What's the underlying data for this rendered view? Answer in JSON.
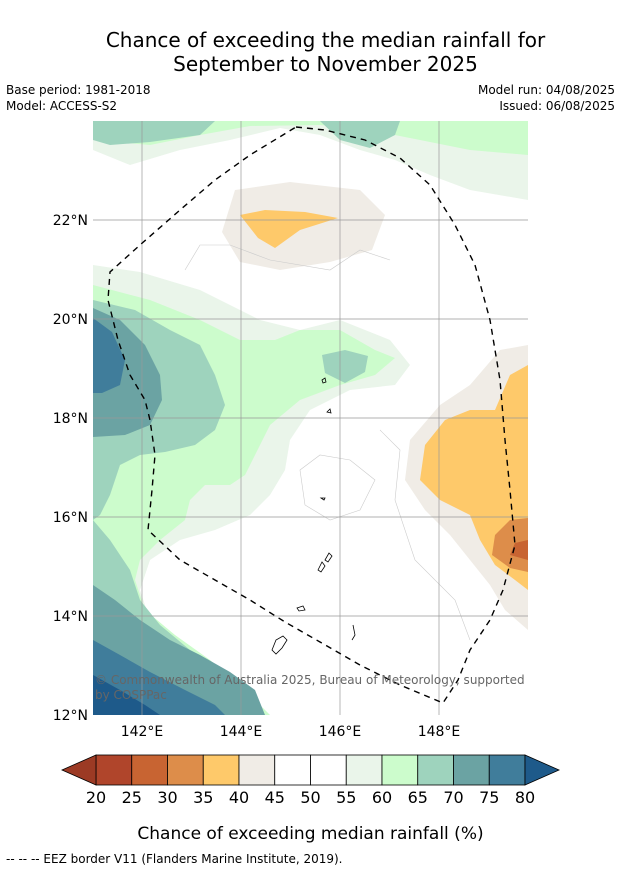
{
  "title_line1": "Chance of exceeding the median rainfall for",
  "title_line2": "September to November 2025",
  "base_period": "Base period: 1981-2018",
  "model": "Model: ACCESS-S2",
  "model_run": "Model run: 04/08/2025",
  "issued": "Issued: 06/08/2025",
  "copyright": "© Commonwealth of Australia 2025, Bureau of Meteorology, supported",
  "copyright2": "by COSPPac",
  "lat_ticks": [
    "22°N",
    "20°N",
    "18°N",
    "16°N",
    "14°N",
    "12°N"
  ],
  "lon_ticks": [
    "142°E",
    "144°E",
    "146°E",
    "148°E"
  ],
  "colorbar": {
    "ticks": [
      "20",
      "25",
      "30",
      "35",
      "40",
      "45",
      "50",
      "55",
      "60",
      "65",
      "70",
      "75",
      "80"
    ],
    "colors": [
      "#b0452b",
      "#c86432",
      "#dd8d4a",
      "#fec96a",
      "#f0ece6",
      "#ffffff",
      "#ffffff",
      "#eaf5ea",
      "#ccfccc",
      "#9ed3bd",
      "#6ba3a3",
      "#407d9b"
    ],
    "low_color": "#9c3a24",
    "high_color": "#1e5a8a",
    "label": "Chance of exceeding median rainfall (%)"
  },
  "footnote": "--  --  -- EEZ border V11 (Flanders Marine Institute, 2019)."
}
